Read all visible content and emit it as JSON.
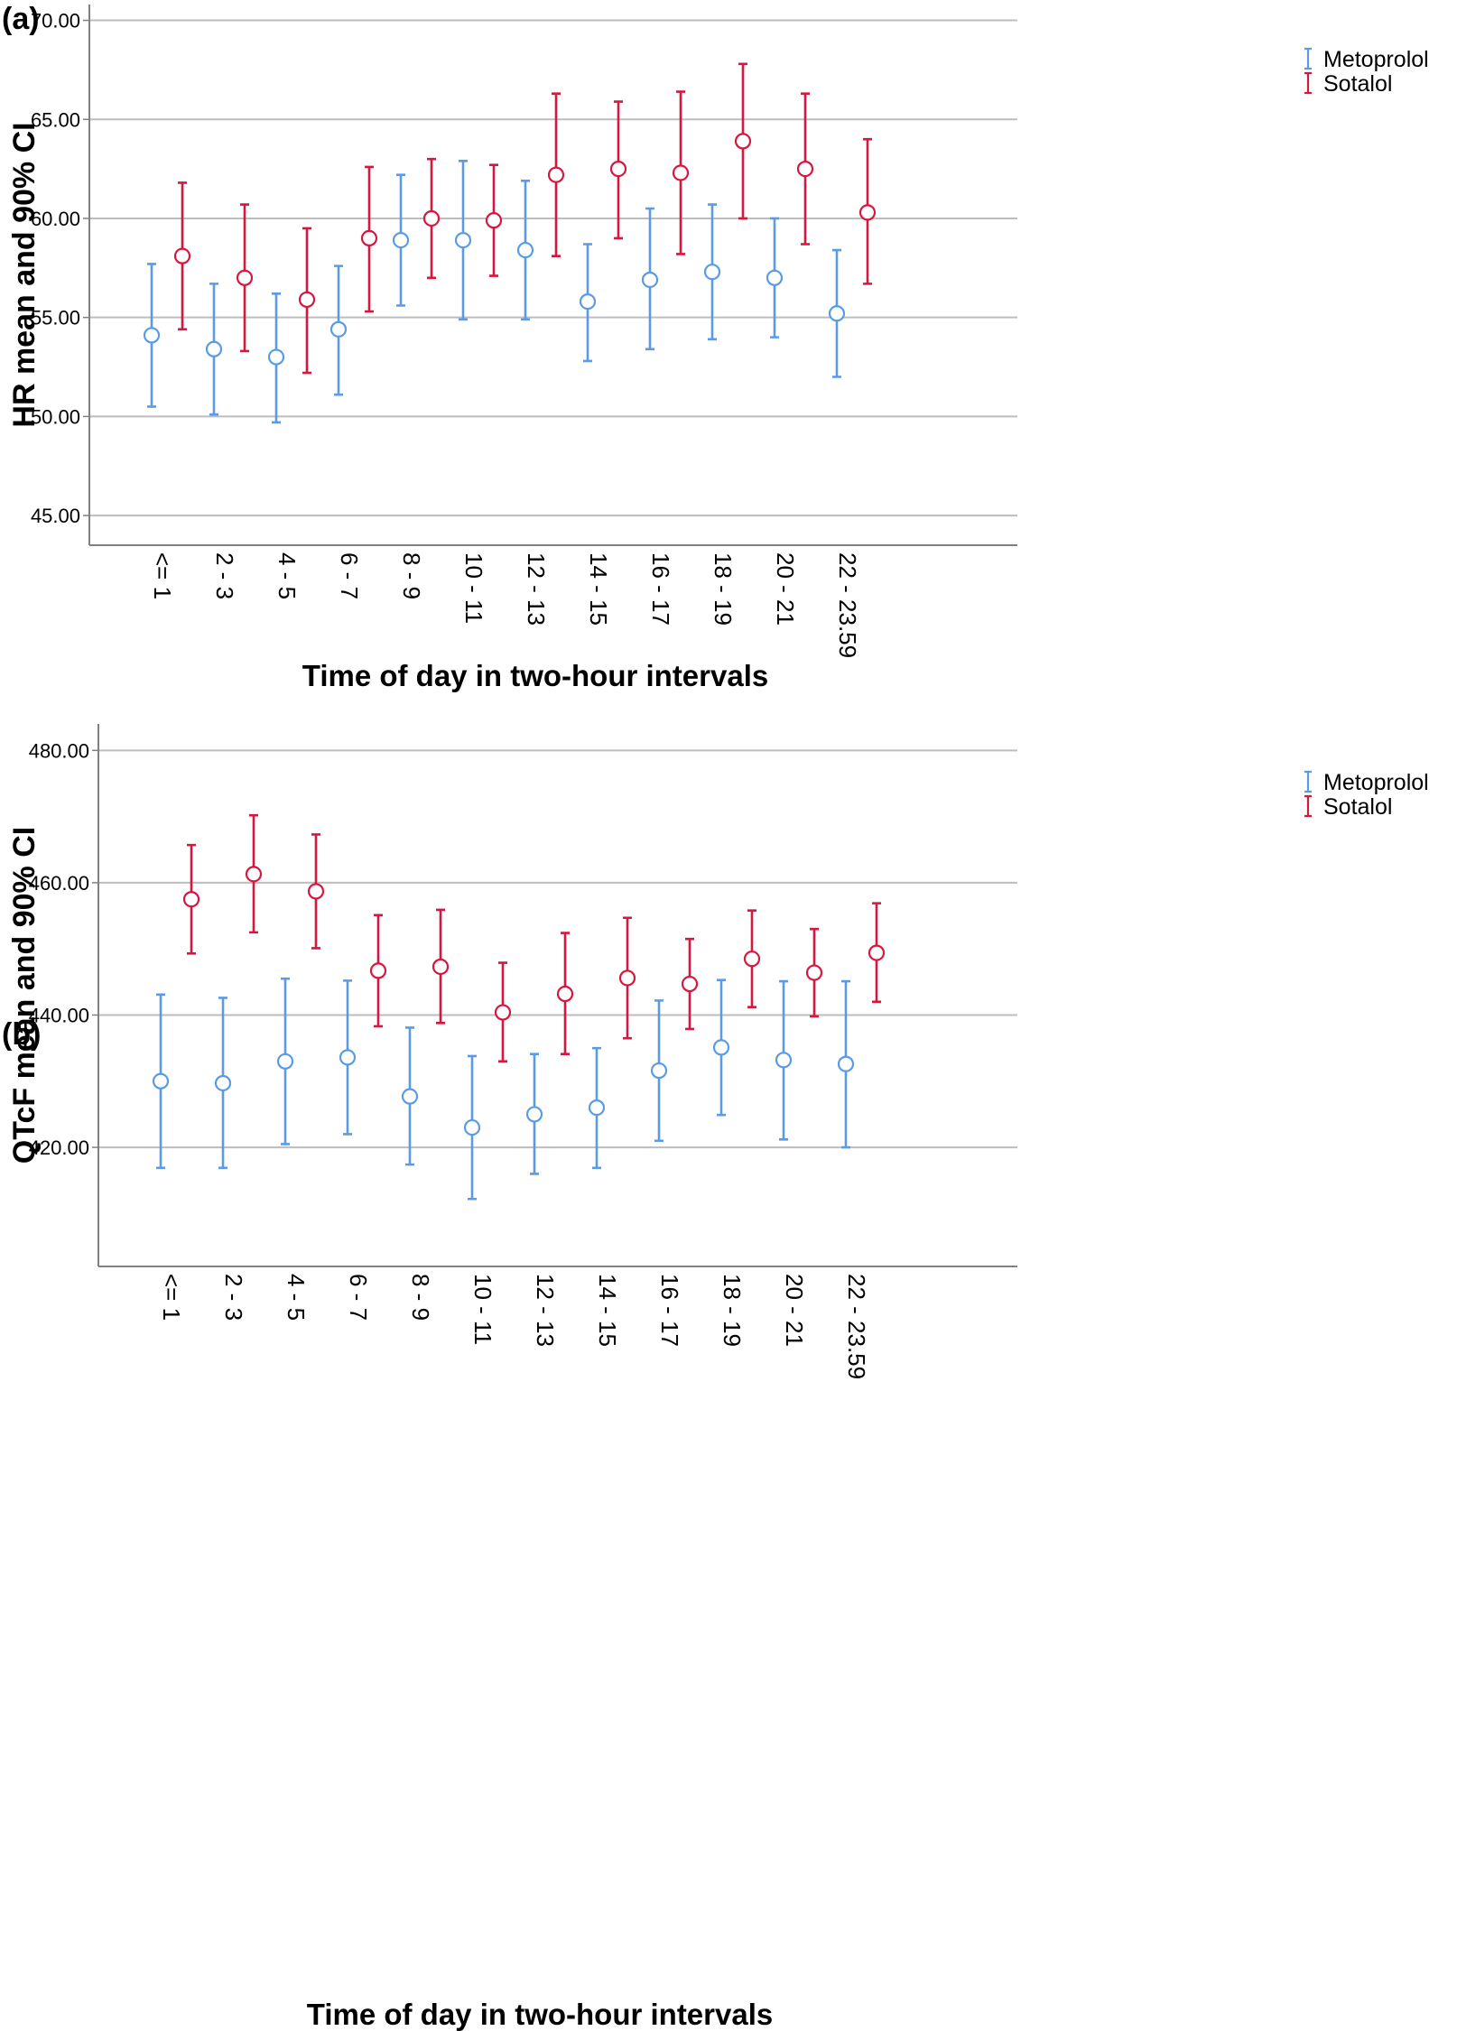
{
  "figure": {
    "panels": [
      {
        "label": "(a)"
      },
      {
        "label": "(b)"
      }
    ]
  },
  "colors": {
    "Metoprolol": "#5b9be6",
    "Sotalol": "#d6173e",
    "grid": "#bdbdbd",
    "axis": "#808080"
  },
  "chart_data": [
    {
      "type": "errorbar",
      "panel": "(a)",
      "xlabel": "Time of day in two-hour intervals",
      "ylabel": "HR mean and 90% CI",
      "ylim": [
        43.5,
        70.8
      ],
      "yticks": [
        45,
        50,
        55,
        60,
        65,
        70
      ],
      "ytick_labels": [
        "45.00",
        "50.00",
        "55.00",
        "60.00",
        "65.00",
        "70.00"
      ],
      "grid": true,
      "legend": "top-right",
      "categories": [
        "<= 1",
        "2 - 3",
        "4 - 5",
        "6 - 7",
        "8 - 9",
        "10 - 11",
        "12 - 13",
        "14 - 15",
        "16 - 17",
        "18 - 19",
        "20 - 21",
        "22 - 23.59"
      ],
      "series": [
        {
          "name": "Metoprolol",
          "mean": [
            54.1,
            53.4,
            53.0,
            54.4,
            58.9,
            58.9,
            58.4,
            55.8,
            56.9,
            57.3,
            57.0,
            55.2
          ],
          "lower": [
            50.5,
            50.1,
            49.7,
            51.1,
            55.6,
            54.9,
            54.9,
            52.8,
            53.4,
            53.9,
            54.0,
            52.0
          ],
          "upper": [
            57.7,
            56.7,
            56.2,
            57.6,
            62.2,
            62.9,
            61.9,
            58.7,
            60.5,
            60.7,
            60.0,
            58.4
          ]
        },
        {
          "name": "Sotalol",
          "mean": [
            58.1,
            57.0,
            55.9,
            59.0,
            60.0,
            59.9,
            62.2,
            62.5,
            62.3,
            63.9,
            62.5,
            60.3
          ],
          "lower": [
            54.4,
            53.3,
            52.2,
            55.3,
            57.0,
            57.1,
            58.1,
            59.0,
            58.2,
            60.0,
            58.7,
            56.7
          ],
          "upper": [
            61.8,
            60.7,
            59.5,
            62.6,
            63.0,
            62.7,
            66.3,
            65.9,
            66.4,
            67.8,
            66.3,
            64.0
          ]
        }
      ]
    },
    {
      "type": "errorbar",
      "panel": "(b)",
      "xlabel": "Time of day in two-hour intervals",
      "ylabel": "QTcF mean and 90% CI",
      "ylim": [
        402,
        484
      ],
      "yticks": [
        420,
        440,
        460,
        480
      ],
      "ytick_labels": [
        "420.00",
        "440.00",
        "460.00",
        "480.00"
      ],
      "grid": true,
      "legend": "top-right",
      "categories": [
        "<= 1",
        "2 - 3",
        "4 - 5",
        "6 - 7",
        "8 - 9",
        "10 - 11",
        "12 - 13",
        "14 - 15",
        "16 - 17",
        "18 - 19",
        "20 - 21",
        "22 - 23.59"
      ],
      "series": [
        {
          "name": "Metoprolol",
          "mean": [
            430.0,
            429.7,
            433.0,
            433.6,
            427.7,
            423.0,
            425.0,
            426.0,
            431.6,
            435.1,
            433.2,
            432.6
          ],
          "lower": [
            416.9,
            416.9,
            420.5,
            422.0,
            417.4,
            412.2,
            416.0,
            416.9,
            421.0,
            424.9,
            421.2,
            420.0
          ],
          "upper": [
            443.1,
            442.6,
            445.5,
            445.2,
            438.1,
            433.8,
            434.1,
            435.0,
            442.2,
            445.3,
            445.1,
            445.1
          ]
        },
        {
          "name": "Sotalol",
          "mean": [
            457.5,
            461.3,
            458.7,
            446.7,
            447.3,
            440.4,
            443.2,
            445.6,
            444.7,
            448.5,
            446.4,
            449.4
          ],
          "lower": [
            449.3,
            452.5,
            450.1,
            438.3,
            438.8,
            433.0,
            434.1,
            436.5,
            437.9,
            441.2,
            439.8,
            442.0
          ],
          "upper": [
            465.7,
            470.2,
            467.3,
            455.1,
            455.9,
            447.9,
            452.4,
            454.7,
            451.5,
            455.8,
            453.0,
            456.9
          ]
        }
      ]
    }
  ]
}
